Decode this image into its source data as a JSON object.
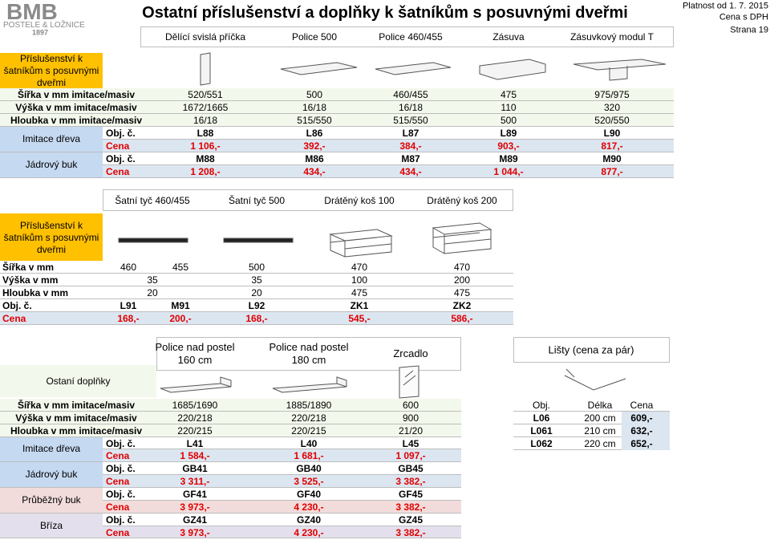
{
  "header": {
    "brand": "BMB",
    "tagline": "POSTELE & LOŽNICE",
    "year": "1897",
    "title": "Ostatní příslušenství a doplňky k šatníkům s posuvnými dveřmi",
    "validity": "Platnost od 1. 7. 2015",
    "price_note": "Cena s DPH",
    "page": "Strana 19"
  },
  "sections": [
    {
      "side_label": "Příslušenství k šatníkům s posuvnými dveřmi",
      "columns": [
        "Dělící svislá příčka",
        "Police 500",
        "Police 460/455",
        "Zásuva",
        "Zásuvkový modul T"
      ],
      "dimensions": [
        {
          "label": "Šířka v mm imitace/masiv",
          "values": [
            "520/551",
            "500",
            "460/455",
            "475",
            "975/975"
          ]
        },
        {
          "label": "Výška v mm imitace/masiv",
          "values": [
            "1672/1665",
            "16/18",
            "16/18",
            "110",
            "320"
          ]
        },
        {
          "label": "Hloubka v mm imitace/masiv",
          "values": [
            "16/18",
            "515/550",
            "515/550",
            "500",
            "520/550"
          ]
        }
      ],
      "variants": [
        {
          "label": "Imitace dřeva",
          "order_label": "Obj. č.",
          "order_numbers": [
            "L88",
            "L86",
            "L87",
            "L89",
            "L90"
          ],
          "price_label": "Cena",
          "prices": [
            "1 106,-",
            "392,-",
            "384,-",
            "903,-",
            "817,-"
          ]
        },
        {
          "label": "Jádrový buk",
          "order_label": "Obj. č.",
          "order_numbers": [
            "M88",
            "M86",
            "M87",
            "M89",
            "M90"
          ],
          "price_label": "Cena",
          "prices": [
            "1 208,-",
            "434,-",
            "434,-",
            "1 044,-",
            "877,-"
          ]
        }
      ]
    },
    {
      "side_label": "Příslušenství k šatníkům s posuvnými dveřmi",
      "columns": [
        "Šatní tyč 460/455",
        "Šatní tyč 500",
        "Drátěný koš 100",
        "Drátěný koš 200"
      ],
      "rows": [
        {
          "label": "Šířka v mm",
          "values": [
            "460",
            "455",
            "500",
            "470",
            "470"
          ]
        },
        {
          "label": "Výška v mm",
          "values": [
            "35",
            "35",
            "100",
            "200"
          ]
        },
        {
          "label": "Hloubka v mm",
          "values": [
            "20",
            "20",
            "475",
            "475"
          ]
        },
        {
          "label": "Obj. č.",
          "values": [
            "L91",
            "M91",
            "L92",
            "ZK1",
            "ZK2"
          ]
        },
        {
          "label": "Cena",
          "values": [
            "168,-",
            "200,-",
            "168,-",
            "545,-",
            "586,-"
          ]
        }
      ]
    },
    {
      "side_label": "Ostaní doplňky",
      "columns": [
        "Police nad postel 160 cm",
        "Police nad postel 180 cm",
        "Zrcadlo"
      ],
      "dimensions": [
        {
          "label": "Šířka v mm imitace/masiv",
          "values": [
            "1685/1690",
            "1885/1890",
            "600"
          ]
        },
        {
          "label": "Výška v mm imitace/masiv",
          "values": [
            "220/218",
            "220/218",
            "900"
          ]
        },
        {
          "label": "Hloubka v mm imitace/masiv",
          "values": [
            "220/215",
            "220/215",
            "21/20"
          ]
        }
      ],
      "variants": [
        {
          "label": "Imitace dřeva",
          "order_label": "Obj. č.",
          "order_numbers": [
            "L41",
            "L40",
            "L45"
          ],
          "price_label": "Cena",
          "prices": [
            "1 584,-",
            "1 681,-",
            "1 097,-"
          ]
        },
        {
          "label": "Jádrový buk",
          "order_label": "Obj. č.",
          "order_numbers": [
            "GB41",
            "GB40",
            "GB45"
          ],
          "price_label": "Cena",
          "prices": [
            "3 311,-",
            "3 525,-",
            "3 382,-"
          ]
        },
        {
          "label": "Průběžný buk",
          "order_label": "Obj. č.",
          "order_numbers": [
            "GF41",
            "GF40",
            "GF45"
          ],
          "price_label": "Cena",
          "prices": [
            "3 973,-",
            "4 230,-",
            "3 382,-"
          ]
        },
        {
          "label": "Bříza",
          "order_label": "Obj. č.",
          "order_numbers": [
            "GZ41",
            "GZ40",
            "GZ45"
          ],
          "price_label": "Cena",
          "prices": [
            "3 973,-",
            "4 230,-",
            "3 382,-"
          ]
        }
      ]
    }
  ],
  "strips": {
    "title": "Lišty (cena za pár)",
    "headers": [
      "Obj.",
      "Délka",
      "Cena"
    ],
    "rows": [
      [
        "L06",
        "200 cm",
        "609,-"
      ],
      [
        "L061",
        "210 cm",
        "632,-"
      ],
      [
        "L062",
        "220 cm",
        "652,-"
      ]
    ]
  }
}
